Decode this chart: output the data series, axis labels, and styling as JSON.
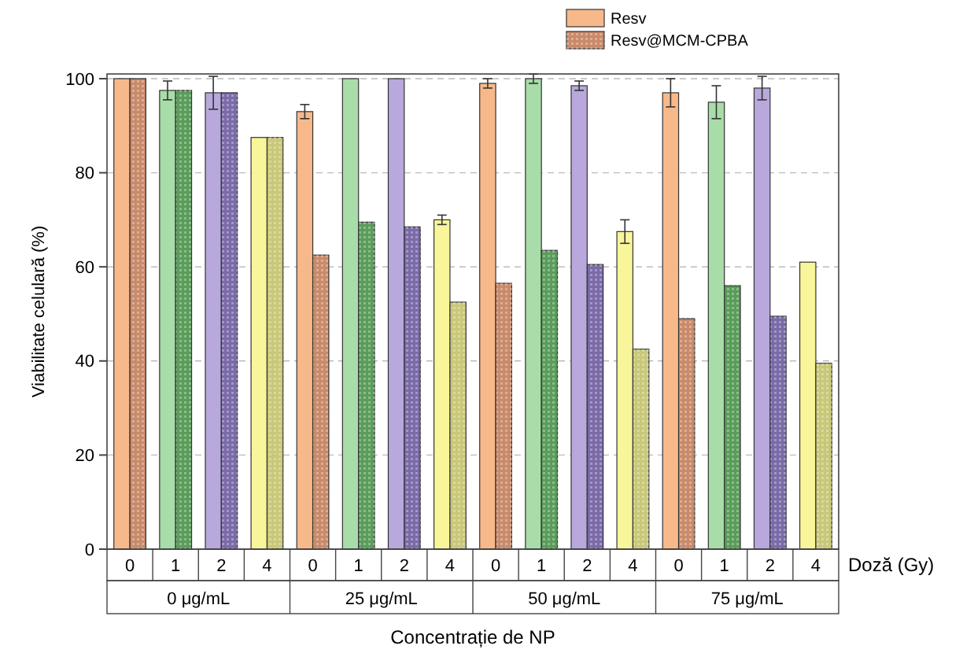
{
  "chart_data": {
    "type": "bar",
    "xlabel": "Concentrație de NP",
    "ylabel": "Viabilitate celulară (%)",
    "categories": [
      "0",
      "1",
      "2",
      "4",
      "0",
      "1",
      "2",
      "4",
      "0",
      "1",
      "2",
      "4",
      "0",
      "1",
      "2",
      "4"
    ],
    "series": [
      {
        "name": "Resv",
        "color": "#f7b98a",
        "colors": [
          "#f7b98a",
          "#a8dca8",
          "#b8a8dc",
          "#f8f59a",
          "#f7b98a",
          "#a8dca8",
          "#b8a8dc",
          "#f8f59a",
          "#f7b98a",
          "#a8dca8",
          "#b8a8dc",
          "#f8f59a",
          "#f7b98a",
          "#a8dca8",
          "#b8a8dc",
          "#f8f59a"
        ],
        "values": [
          100,
          97.5,
          97,
          87.5,
          93,
          100,
          100,
          70,
          99,
          100,
          98.5,
          67.5,
          97,
          95,
          98,
          61
        ],
        "errors": [
          null,
          2,
          3.5,
          null,
          1.5,
          null,
          null,
          1,
          1,
          1,
          1,
          2.5,
          3,
          3.5,
          2.5,
          null
        ]
      },
      {
        "name": "Resv@MCM-CPBA",
        "color": "#c98a6a",
        "colors": [
          "#c98a6a",
          "#5a9c5a",
          "#7a6aa8",
          "#c8c878",
          "#c98a6a",
          "#5a9c5a",
          "#7a6aa8",
          "#c8c878",
          "#c98a6a",
          "#5a9c5a",
          "#7a6aa8",
          "#c8c878",
          "#c98a6a",
          "#5a9c5a",
          "#7a6aa8",
          "#c8c878"
        ],
        "values": [
          100,
          97.5,
          97,
          87.5,
          62.5,
          69.5,
          68.5,
          52.5,
          56.5,
          63.5,
          60.5,
          42.5,
          49,
          56,
          49.5,
          39.5
        ]
      }
    ],
    "ylim": [
      0,
      101
    ],
    "yticks": [
      0,
      20,
      40,
      60,
      80,
      100
    ],
    "grid": "y",
    "legend": "top right",
    "annotations": [
      "Doză (Gy)",
      "0 μg/mL",
      "25 μg/mL",
      "50 μg/mL",
      "75 μg/mL"
    ]
  }
}
